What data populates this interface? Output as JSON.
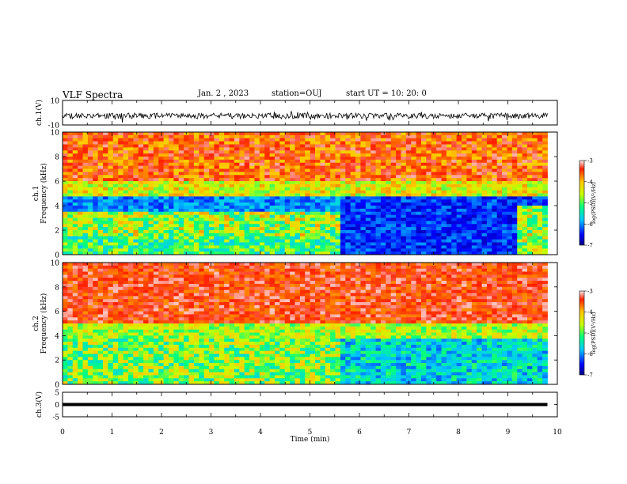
{
  "header": {
    "title": "VLF Spectra",
    "date": "Jan. 2 , 2023",
    "station": "station=OUJ",
    "start_ut": "start UT = 10: 20: 0"
  },
  "chart_data": {
    "type": "heatmap",
    "x_axis": {
      "label": "Time (min)",
      "range": [
        0,
        10
      ],
      "ticks": [
        "0",
        "1",
        "2",
        "3",
        "4",
        "5",
        "6",
        "7",
        "8",
        "9",
        "10"
      ]
    },
    "panels": [
      {
        "name": "ch1-waveform",
        "ylabel": "ch.1(V)",
        "ylim": [
          -10,
          10
        ],
        "ticks": [
          "10",
          "-10"
        ],
        "kind": "waveform"
      },
      {
        "name": "ch1-spectrogram",
        "ylabel_top": "ch.1",
        "ylabel": "Frequency (kHz)",
        "ylim": [
          0,
          10
        ],
        "ticks": [
          "0",
          "2",
          "4",
          "6",
          "8",
          "10"
        ],
        "kind": "spectrogram",
        "colorbar": {
          "label": "log(PSD)(V²/Hz)",
          "range": [
            -7,
            -3
          ],
          "ticks": [
            "-3",
            "-4",
            "-5",
            "-6",
            "-7"
          ]
        }
      },
      {
        "name": "ch2-spectrogram",
        "ylabel_top": "ch.2",
        "ylabel": "Frequency (kHz)",
        "ylim": [
          0,
          10
        ],
        "ticks": [
          "0",
          "2",
          "4",
          "6",
          "8",
          "10"
        ],
        "kind": "spectrogram",
        "colorbar": {
          "label": "log(PSD)(V²/Hz)",
          "range": [
            -7,
            -3
          ],
          "ticks": [
            "-3",
            "-4",
            "-5",
            "-6",
            "-7"
          ]
        }
      },
      {
        "name": "ch3-waveform",
        "ylabel": "ch.3(V)",
        "ylim": [
          -5,
          5
        ],
        "ticks": [
          "5",
          "0",
          "-5"
        ],
        "kind": "constant",
        "value": 0
      }
    ],
    "data_end_min": 9.8
  }
}
